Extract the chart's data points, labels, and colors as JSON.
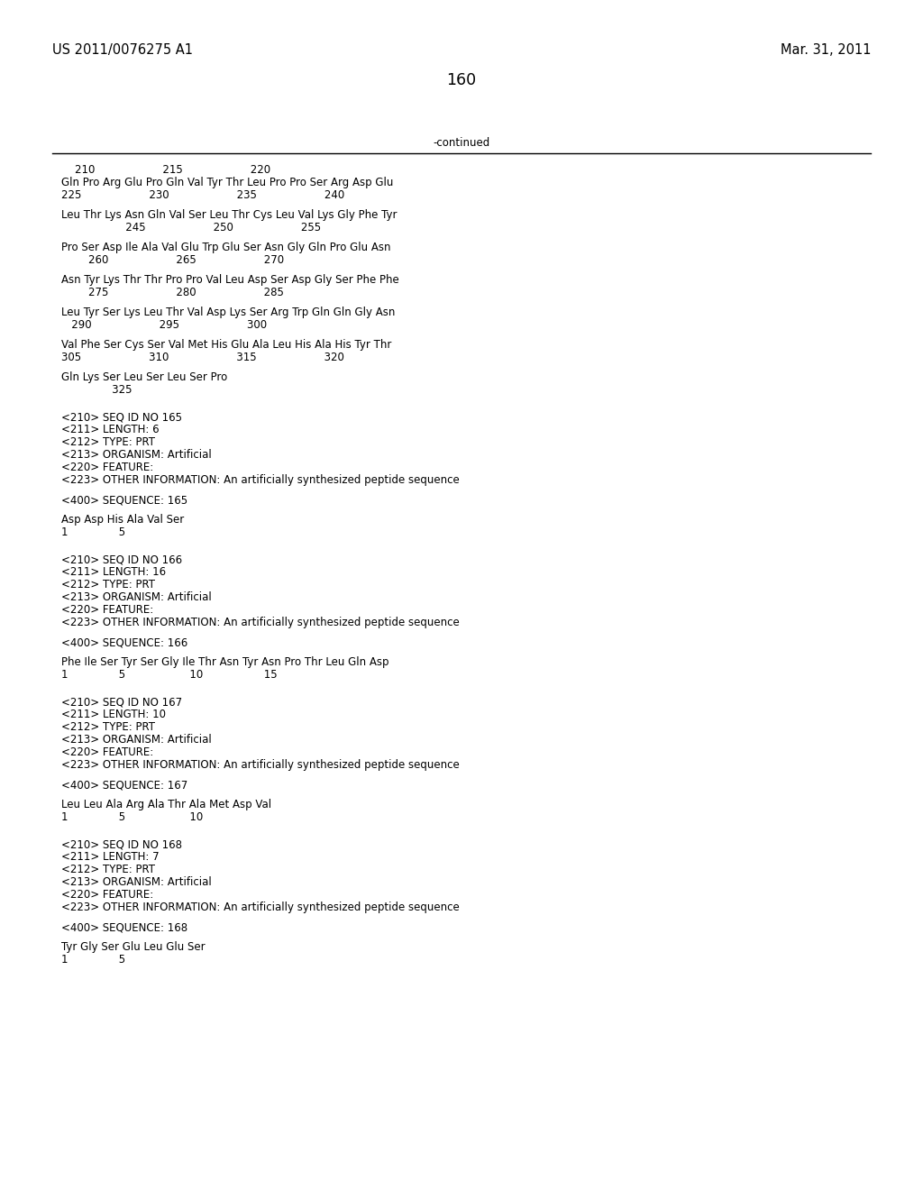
{
  "header_left": "US 2011/0076275 A1",
  "header_right": "Mar. 31, 2011",
  "page_number": "160",
  "continued_label": "-continued",
  "background_color": "#ffffff",
  "text_color": "#000000",
  "font_size": 8.5,
  "header_font_size": 10.5,
  "content": [
    {
      "type": "numbers",
      "text": "    210                    215                    220"
    },
    {
      "type": "sequence",
      "text": "Gln Pro Arg Glu Pro Gln Val Tyr Thr Leu Pro Pro Ser Arg Asp Glu"
    },
    {
      "type": "numbers",
      "text": "225                    230                    235                    240"
    },
    {
      "type": "blank"
    },
    {
      "type": "sequence",
      "text": "Leu Thr Lys Asn Gln Val Ser Leu Thr Cys Leu Val Lys Gly Phe Tyr"
    },
    {
      "type": "numbers",
      "text": "                   245                    250                    255"
    },
    {
      "type": "blank"
    },
    {
      "type": "sequence",
      "text": "Pro Ser Asp Ile Ala Val Glu Trp Glu Ser Asn Gly Gln Pro Glu Asn"
    },
    {
      "type": "numbers",
      "text": "        260                    265                    270"
    },
    {
      "type": "blank"
    },
    {
      "type": "sequence",
      "text": "Asn Tyr Lys Thr Thr Pro Pro Val Leu Asp Ser Asp Gly Ser Phe Phe"
    },
    {
      "type": "numbers",
      "text": "        275                    280                    285"
    },
    {
      "type": "blank"
    },
    {
      "type": "sequence",
      "text": "Leu Tyr Ser Lys Leu Thr Val Asp Lys Ser Arg Trp Gln Gln Gly Asn"
    },
    {
      "type": "numbers",
      "text": "   290                    295                    300"
    },
    {
      "type": "blank"
    },
    {
      "type": "sequence",
      "text": "Val Phe Ser Cys Ser Val Met His Glu Ala Leu His Ala His Tyr Thr"
    },
    {
      "type": "numbers",
      "text": "305                    310                    315                    320"
    },
    {
      "type": "blank"
    },
    {
      "type": "sequence",
      "text": "Gln Lys Ser Leu Ser Leu Ser Pro"
    },
    {
      "type": "numbers",
      "text": "               325"
    },
    {
      "type": "blank"
    },
    {
      "type": "blank"
    },
    {
      "type": "meta",
      "text": "<210> SEQ ID NO 165"
    },
    {
      "type": "meta",
      "text": "<211> LENGTH: 6"
    },
    {
      "type": "meta",
      "text": "<212> TYPE: PRT"
    },
    {
      "type": "meta",
      "text": "<213> ORGANISM: Artificial"
    },
    {
      "type": "meta",
      "text": "<220> FEATURE:"
    },
    {
      "type": "meta",
      "text": "<223> OTHER INFORMATION: An artificially synthesized peptide sequence"
    },
    {
      "type": "blank"
    },
    {
      "type": "meta",
      "text": "<400> SEQUENCE: 165"
    },
    {
      "type": "blank"
    },
    {
      "type": "sequence",
      "text": "Asp Asp His Ala Val Ser"
    },
    {
      "type": "numbers",
      "text": "1               5"
    },
    {
      "type": "blank"
    },
    {
      "type": "blank"
    },
    {
      "type": "meta",
      "text": "<210> SEQ ID NO 166"
    },
    {
      "type": "meta",
      "text": "<211> LENGTH: 16"
    },
    {
      "type": "meta",
      "text": "<212> TYPE: PRT"
    },
    {
      "type": "meta",
      "text": "<213> ORGANISM: Artificial"
    },
    {
      "type": "meta",
      "text": "<220> FEATURE:"
    },
    {
      "type": "meta",
      "text": "<223> OTHER INFORMATION: An artificially synthesized peptide sequence"
    },
    {
      "type": "blank"
    },
    {
      "type": "meta",
      "text": "<400> SEQUENCE: 166"
    },
    {
      "type": "blank"
    },
    {
      "type": "sequence",
      "text": "Phe Ile Ser Tyr Ser Gly Ile Thr Asn Tyr Asn Pro Thr Leu Gln Asp"
    },
    {
      "type": "numbers",
      "text": "1               5                   10                  15"
    },
    {
      "type": "blank"
    },
    {
      "type": "blank"
    },
    {
      "type": "meta",
      "text": "<210> SEQ ID NO 167"
    },
    {
      "type": "meta",
      "text": "<211> LENGTH: 10"
    },
    {
      "type": "meta",
      "text": "<212> TYPE: PRT"
    },
    {
      "type": "meta",
      "text": "<213> ORGANISM: Artificial"
    },
    {
      "type": "meta",
      "text": "<220> FEATURE:"
    },
    {
      "type": "meta",
      "text": "<223> OTHER INFORMATION: An artificially synthesized peptide sequence"
    },
    {
      "type": "blank"
    },
    {
      "type": "meta",
      "text": "<400> SEQUENCE: 167"
    },
    {
      "type": "blank"
    },
    {
      "type": "sequence",
      "text": "Leu Leu Ala Arg Ala Thr Ala Met Asp Val"
    },
    {
      "type": "numbers",
      "text": "1               5                   10"
    },
    {
      "type": "blank"
    },
    {
      "type": "blank"
    },
    {
      "type": "meta",
      "text": "<210> SEQ ID NO 168"
    },
    {
      "type": "meta",
      "text": "<211> LENGTH: 7"
    },
    {
      "type": "meta",
      "text": "<212> TYPE: PRT"
    },
    {
      "type": "meta",
      "text": "<213> ORGANISM: Artificial"
    },
    {
      "type": "meta",
      "text": "<220> FEATURE:"
    },
    {
      "type": "meta",
      "text": "<223> OTHER INFORMATION: An artificially synthesized peptide sequence"
    },
    {
      "type": "blank"
    },
    {
      "type": "meta",
      "text": "<400> SEQUENCE: 168"
    },
    {
      "type": "blank"
    },
    {
      "type": "sequence",
      "text": "Tyr Gly Ser Glu Leu Glu Ser"
    },
    {
      "type": "numbers",
      "text": "1               5"
    }
  ]
}
